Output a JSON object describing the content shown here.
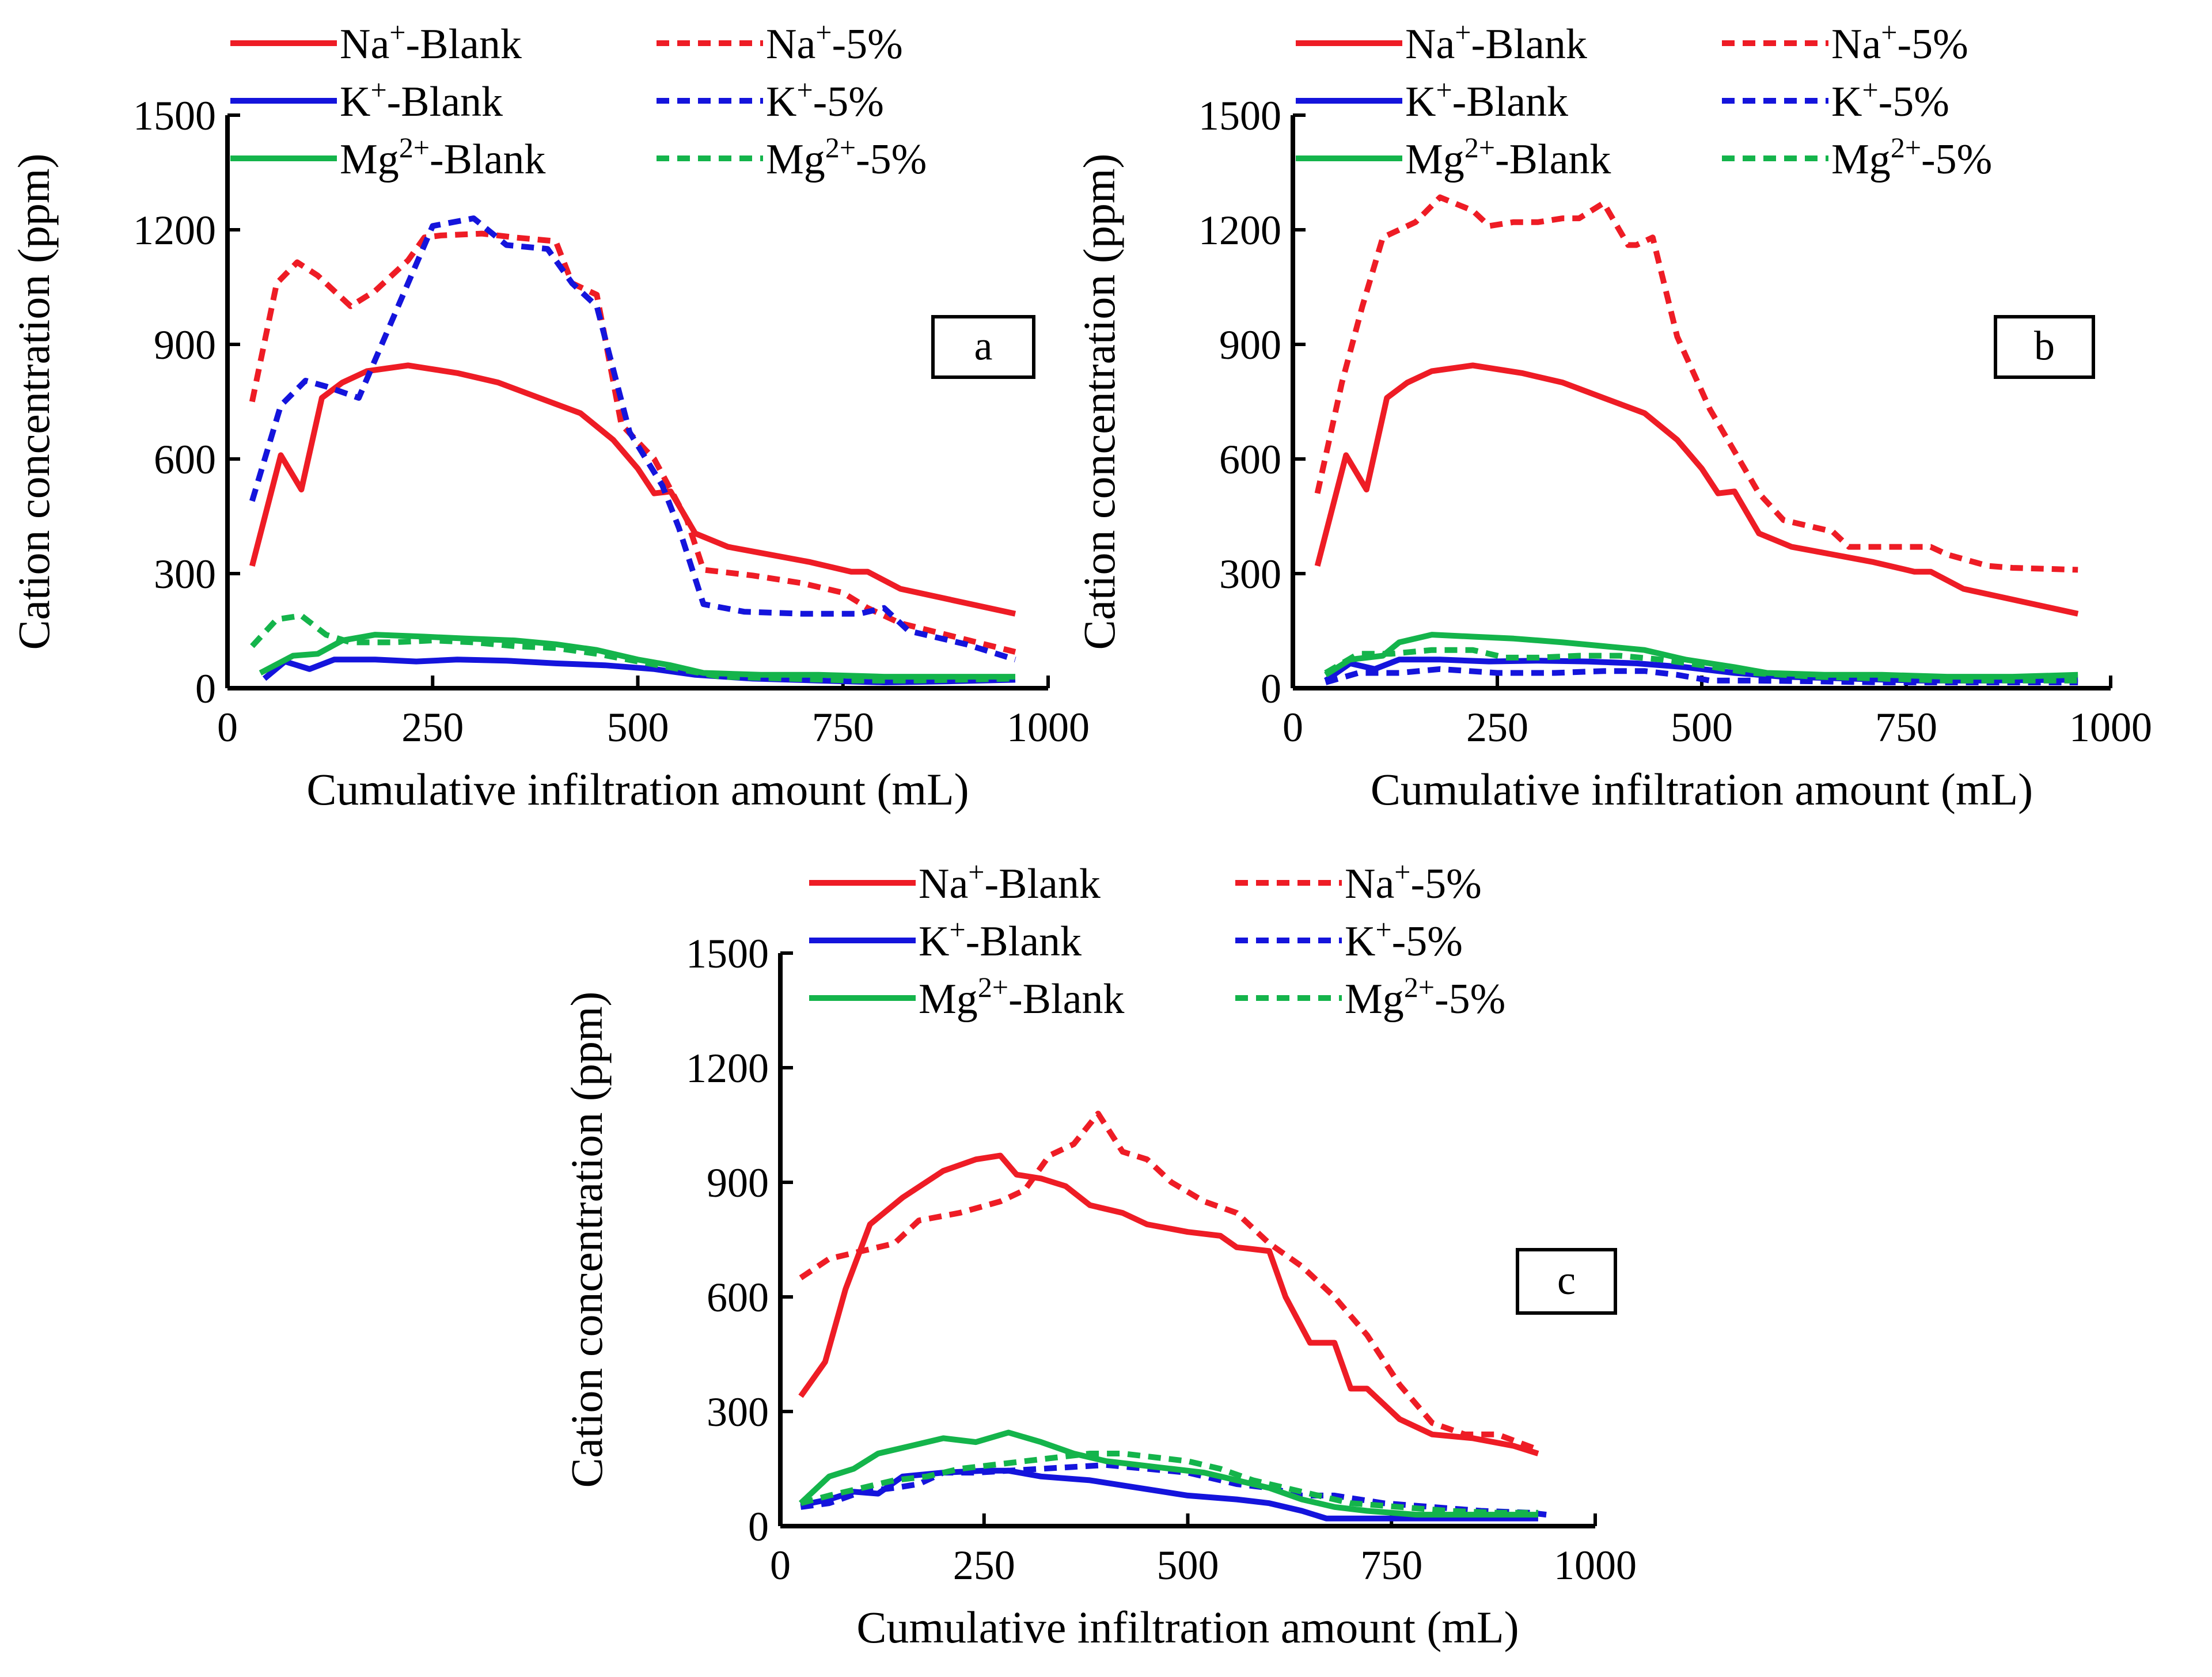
{
  "chart_data": [
    {
      "panel": "a",
      "type": "line",
      "xlabel": "Cumulative infiltration amount (mL)",
      "ylabel": "Cation concentration (ppm)",
      "xlim": [
        0,
        1000
      ],
      "ylim": [
        0,
        1500
      ],
      "xticks": [
        "0",
        "250",
        "500",
        "750",
        "1000"
      ],
      "yticks": [
        "0",
        "300",
        "600",
        "900",
        "1200",
        "1500"
      ],
      "legend_position": "top",
      "series": [
        {
          "name": "Na+-Blank",
          "ion": "Na",
          "sup": "+",
          "suffix": "-Blank",
          "color": "#ee1c25",
          "dash": "solid",
          "x": [
            30,
            65,
            90,
            115,
            140,
            170,
            220,
            280,
            330,
            380,
            430,
            470,
            500,
            520,
            540,
            570,
            610,
            660,
            710,
            760,
            780,
            820,
            960
          ],
          "y": [
            320,
            610,
            520,
            760,
            800,
            830,
            845,
            825,
            800,
            760,
            720,
            650,
            575,
            510,
            515,
            405,
            370,
            350,
            330,
            305,
            305,
            260,
            195
          ]
        },
        {
          "name": "Na+-5%",
          "ion": "Na",
          "sup": "+",
          "suffix": "-5%",
          "color": "#ee1c25",
          "dash": "dashed",
          "x": [
            30,
            60,
            85,
            110,
            150,
            180,
            220,
            240,
            260,
            310,
            350,
            400,
            420,
            450,
            480,
            520,
            560,
            580,
            640,
            700,
            750,
            780,
            820,
            960
          ],
          "y": [
            750,
            1060,
            1115,
            1080,
            1000,
            1040,
            1120,
            1180,
            1185,
            1190,
            1180,
            1170,
            1060,
            1030,
            690,
            600,
            440,
            310,
            295,
            275,
            250,
            210,
            170,
            95
          ]
        },
        {
          "name": "K+-Blank",
          "ion": "K",
          "sup": "+",
          "suffix": "-Blank",
          "color": "#1414dc",
          "dash": "solid",
          "x": [
            45,
            70,
            100,
            130,
            180,
            230,
            280,
            340,
            400,
            460,
            520,
            570,
            640,
            720,
            800,
            880,
            960
          ],
          "y": [
            25,
            70,
            50,
            75,
            75,
            70,
            75,
            72,
            65,
            60,
            50,
            35,
            25,
            20,
            15,
            18,
            22
          ]
        },
        {
          "name": "K+-5%",
          "ion": "K",
          "sup": "+",
          "suffix": "-5%",
          "color": "#1414dc",
          "dash": "dashed",
          "x": [
            30,
            65,
            95,
            120,
            160,
            200,
            250,
            300,
            340,
            390,
            420,
            450,
            490,
            530,
            550,
            580,
            630,
            700,
            770,
            800,
            830,
            900,
            960
          ],
          "y": [
            490,
            740,
            805,
            790,
            760,
            960,
            1210,
            1230,
            1160,
            1150,
            1060,
            1000,
            670,
            530,
            420,
            220,
            200,
            195,
            195,
            210,
            150,
            115,
            75
          ]
        },
        {
          "name": "Mg2+-Blank",
          "ion": "Mg",
          "sup": "2+",
          "suffix": "-Blank",
          "color": "#14b44b",
          "dash": "solid",
          "x": [
            40,
            80,
            110,
            140,
            180,
            240,
            290,
            350,
            400,
            450,
            500,
            540,
            580,
            650,
            720,
            800,
            880,
            960
          ],
          "y": [
            40,
            85,
            90,
            125,
            140,
            135,
            130,
            125,
            115,
            100,
            75,
            60,
            40,
            35,
            35,
            30,
            30,
            30
          ]
        },
        {
          "name": "Mg2+-5%",
          "ion": "Mg",
          "sup": "2+",
          "suffix": "-5%",
          "color": "#14b44b",
          "dash": "dashed",
          "x": [
            30,
            60,
            90,
            120,
            150,
            200,
            250,
            300,
            350,
            400,
            450,
            500,
            550,
            600,
            680,
            760,
            840,
            960
          ],
          "y": [
            110,
            180,
            190,
            140,
            120,
            120,
            125,
            120,
            110,
            105,
            90,
            70,
            50,
            30,
            25,
            20,
            20,
            25
          ]
        }
      ]
    },
    {
      "panel": "b",
      "type": "line",
      "xlabel": "Cumulative infiltration amount (mL)",
      "ylabel": "Cation concentration (ppm)",
      "xlim": [
        0,
        1000
      ],
      "ylim": [
        0,
        1500
      ],
      "xticks": [
        "0",
        "250",
        "500",
        "750",
        "1000"
      ],
      "yticks": [
        "0",
        "300",
        "600",
        "900",
        "1200",
        "1500"
      ],
      "legend_position": "top",
      "series": [
        {
          "name": "Na+-Blank",
          "ion": "Na",
          "sup": "+",
          "suffix": "-Blank",
          "color": "#ee1c25",
          "dash": "solid",
          "x": [
            30,
            65,
            90,
            115,
            140,
            170,
            220,
            280,
            330,
            380,
            430,
            470,
            500,
            520,
            540,
            570,
            610,
            660,
            710,
            760,
            780,
            820,
            960
          ],
          "y": [
            320,
            610,
            520,
            760,
            800,
            830,
            845,
            825,
            800,
            760,
            720,
            650,
            575,
            510,
            515,
            405,
            370,
            350,
            330,
            305,
            305,
            260,
            195
          ]
        },
        {
          "name": "Na+-5%",
          "ion": "Na",
          "sup": "+",
          "suffix": "-5%",
          "color": "#ee1c25",
          "dash": "dashed",
          "x": [
            30,
            60,
            85,
            110,
            150,
            180,
            220,
            240,
            270,
            300,
            330,
            350,
            380,
            410,
            420,
            440,
            470,
            510,
            540,
            570,
            600,
            640,
            660,
            680,
            720,
            780,
            800,
            850,
            880,
            960
          ],
          "y": [
            510,
            800,
            1000,
            1180,
            1220,
            1285,
            1250,
            1210,
            1220,
            1220,
            1230,
            1230,
            1270,
            1160,
            1160,
            1180,
            920,
            730,
            620,
            510,
            440,
            420,
            410,
            370,
            370,
            370,
            350,
            320,
            315,
            310
          ]
        },
        {
          "name": "K+-Blank",
          "ion": "K",
          "sup": "+",
          "suffix": "-Blank",
          "color": "#1414dc",
          "dash": "solid",
          "x": [
            40,
            70,
            100,
            130,
            180,
            240,
            300,
            360,
            420,
            480,
            540,
            600,
            680,
            760,
            840,
            960
          ],
          "y": [
            20,
            65,
            50,
            75,
            75,
            70,
            72,
            70,
            65,
            55,
            40,
            30,
            25,
            20,
            20,
            22
          ]
        },
        {
          "name": "K+-5%",
          "ion": "K",
          "sup": "+",
          "suffix": "-5%",
          "color": "#1414dc",
          "dash": "dashed",
          "x": [
            40,
            80,
            130,
            180,
            250,
            320,
            380,
            430,
            470,
            510,
            560,
            640,
            720,
            800,
            880,
            960
          ],
          "y": [
            15,
            40,
            40,
            50,
            40,
            40,
            45,
            45,
            35,
            20,
            20,
            18,
            15,
            15,
            15,
            15
          ]
        },
        {
          "name": "Mg2+-Blank",
          "ion": "Mg",
          "sup": "2+",
          "suffix": "-Blank",
          "color": "#14b44b",
          "dash": "solid",
          "x": [
            40,
            70,
            110,
            130,
            170,
            220,
            270,
            330,
            380,
            430,
            480,
            540,
            580,
            650,
            720,
            800,
            880,
            960
          ],
          "y": [
            35,
            75,
            85,
            120,
            140,
            135,
            130,
            120,
            110,
            100,
            75,
            55,
            40,
            35,
            35,
            30,
            30,
            35
          ]
        },
        {
          "name": "Mg2+-5%",
          "ion": "Mg",
          "sup": "2+",
          "suffix": "-5%",
          "color": "#14b44b",
          "dash": "dashed",
          "x": [
            40,
            80,
            120,
            170,
            220,
            260,
            300,
            350,
            400,
            450,
            500,
            560,
            640,
            720,
            800,
            880,
            960
          ],
          "y": [
            40,
            90,
            90,
            100,
            100,
            80,
            80,
            85,
            85,
            75,
            60,
            40,
            30,
            25,
            20,
            20,
            20
          ]
        }
      ]
    },
    {
      "panel": "c",
      "type": "line",
      "xlabel": "Cumulative infiltration amount (mL)",
      "ylabel": "Cation concentration (ppm)",
      "xlim": [
        0,
        1000
      ],
      "ylim": [
        0,
        1500
      ],
      "xticks": [
        "0",
        "250",
        "500",
        "750",
        "1000"
      ],
      "yticks": [
        "0",
        "300",
        "600",
        "900",
        "1200",
        "1500"
      ],
      "legend_position": "top",
      "series": [
        {
          "name": "Na+-Blank",
          "ion": "Na",
          "sup": "+",
          "suffix": "-Blank",
          "color": "#ee1c25",
          "dash": "solid",
          "x": [
            25,
            55,
            80,
            110,
            150,
            200,
            240,
            270,
            290,
            320,
            350,
            380,
            420,
            450,
            500,
            540,
            560,
            600,
            620,
            650,
            680,
            700,
            720,
            760,
            800,
            850,
            900,
            930
          ],
          "y": [
            340,
            430,
            620,
            790,
            860,
            930,
            960,
            970,
            920,
            910,
            890,
            840,
            820,
            790,
            770,
            760,
            730,
            720,
            600,
            480,
            480,
            360,
            360,
            280,
            240,
            230,
            210,
            190
          ]
        },
        {
          "name": "Na+-5%",
          "ion": "Na",
          "sup": "+",
          "suffix": "-5%",
          "color": "#ee1c25",
          "dash": "dashed",
          "x": [
            25,
            60,
            100,
            140,
            170,
            220,
            270,
            300,
            330,
            360,
            390,
            420,
            450,
            480,
            520,
            560,
            600,
            640,
            680,
            720,
            760,
            800,
            840,
            880,
            930
          ],
          "y": [
            650,
            700,
            720,
            740,
            800,
            820,
            850,
            880,
            970,
            1000,
            1080,
            980,
            960,
            900,
            850,
            820,
            740,
            680,
            600,
            500,
            370,
            270,
            240,
            240,
            200
          ]
        },
        {
          "name": "K+-Blank",
          "ion": "K",
          "sup": "+",
          "suffix": "-Blank",
          "color": "#1414dc",
          "dash": "solid",
          "x": [
            25,
            60,
            90,
            120,
            150,
            200,
            250,
            280,
            320,
            380,
            440,
            500,
            560,
            600,
            640,
            670,
            720,
            800,
            880,
            930
          ],
          "y": [
            55,
            70,
            90,
            85,
            130,
            140,
            145,
            145,
            130,
            120,
            100,
            80,
            70,
            60,
            40,
            20,
            20,
            20,
            20,
            20
          ]
        },
        {
          "name": "K+-5%",
          "ion": "K",
          "sup": "+",
          "suffix": "-5%",
          "color": "#1414dc",
          "dash": "dashed",
          "x": [
            25,
            60,
            100,
            140,
            170,
            200,
            240,
            280,
            320,
            360,
            400,
            450,
            500,
            560,
            600,
            640,
            680,
            740,
            800,
            860,
            920,
            940
          ],
          "y": [
            50,
            60,
            90,
            100,
            110,
            140,
            140,
            145,
            150,
            155,
            160,
            150,
            140,
            110,
            100,
            80,
            80,
            60,
            50,
            40,
            35,
            30
          ]
        },
        {
          "name": "Mg2+-Blank",
          "ion": "Mg",
          "sup": "2+",
          "suffix": "-Blank",
          "color": "#14b44b",
          "dash": "solid",
          "x": [
            25,
            60,
            90,
            120,
            160,
            200,
            240,
            280,
            320,
            360,
            400,
            440,
            480,
            520,
            560,
            600,
            640,
            680,
            720,
            780,
            850,
            930
          ],
          "y": [
            60,
            130,
            150,
            190,
            210,
            230,
            220,
            245,
            220,
            190,
            170,
            160,
            150,
            140,
            120,
            100,
            70,
            50,
            40,
            30,
            30,
            30
          ]
        },
        {
          "name": "Mg2+-5%",
          "ion": "Mg",
          "sup": "2+",
          "suffix": "-5%",
          "color": "#14b44b",
          "dash": "dashed",
          "x": [
            25,
            60,
            100,
            140,
            180,
            220,
            260,
            300,
            340,
            380,
            420,
            460,
            500,
            540,
            580,
            620,
            660,
            700,
            760,
            820,
            880,
            930
          ],
          "y": [
            60,
            80,
            100,
            120,
            130,
            150,
            160,
            170,
            180,
            190,
            190,
            180,
            170,
            150,
            120,
            100,
            80,
            60,
            50,
            40,
            35,
            35
          ]
        }
      ]
    }
  ]
}
